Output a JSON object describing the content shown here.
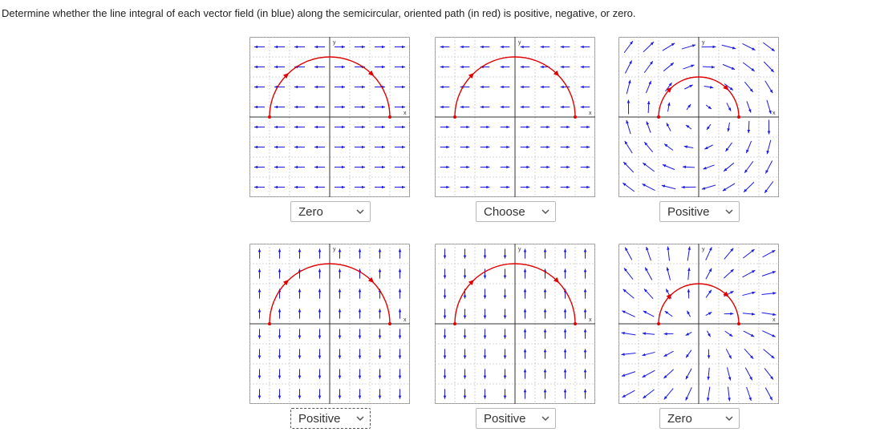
{
  "instructions": "Determine whether the line integral of each vector field (in blue) along the semicircular, oriented path (in red) is positive, negative, or zero.",
  "axis_labels": {
    "x": "x",
    "y": "y"
  },
  "colors": {
    "field": "#1a1ae6",
    "path": "#e00000",
    "grid": "#c8c8c8",
    "axis": "#333333"
  },
  "problems": [
    {
      "id": "p1",
      "field": "horizontal-outward",
      "answer": "Zero"
    },
    {
      "id": "p2",
      "field": "horizontal-varying",
      "answer": "Choose"
    },
    {
      "id": "p3",
      "field": "rotational-clockwise",
      "answer": "Positive"
    },
    {
      "id": "p4",
      "field": "vertical-varying",
      "answer": "Positive"
    },
    {
      "id": "p5",
      "field": "vertical-alternating",
      "answer": "Positive"
    },
    {
      "id": "p6",
      "field": "radial-outward",
      "answer": "Zero"
    }
  ],
  "dropdown_icon": "chevron-down-icon"
}
